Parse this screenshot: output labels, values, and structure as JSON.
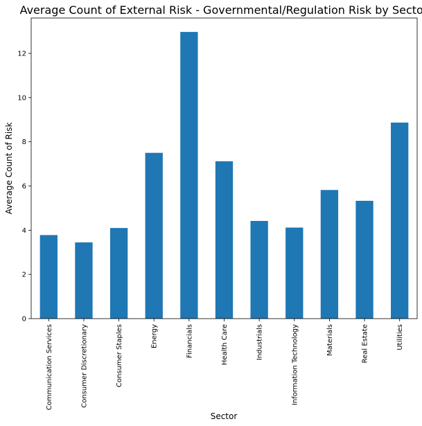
{
  "chart_data": {
    "type": "bar",
    "title": "Average Count of External Risk - Governmental/Regulation Risk by Sector",
    "xlabel": "Sector",
    "ylabel": "Average Count of Risk",
    "categories": [
      "Communication Services",
      "Consumer Discretionary",
      "Consumer Staples",
      "Energy",
      "Financials",
      "Health Care",
      "Industrials",
      "Information Technology",
      "Materials",
      "Real Estate",
      "Utilities"
    ],
    "values": [
      3.78,
      3.45,
      4.1,
      7.5,
      12.97,
      7.12,
      4.42,
      4.12,
      5.82,
      5.33,
      8.87
    ],
    "yticks": [
      "0",
      "2",
      "4",
      "6",
      "8",
      "10",
      "12"
    ],
    "ylim": [
      0,
      13.6
    ],
    "grid": false,
    "bar_color": "#1f77b4"
  }
}
